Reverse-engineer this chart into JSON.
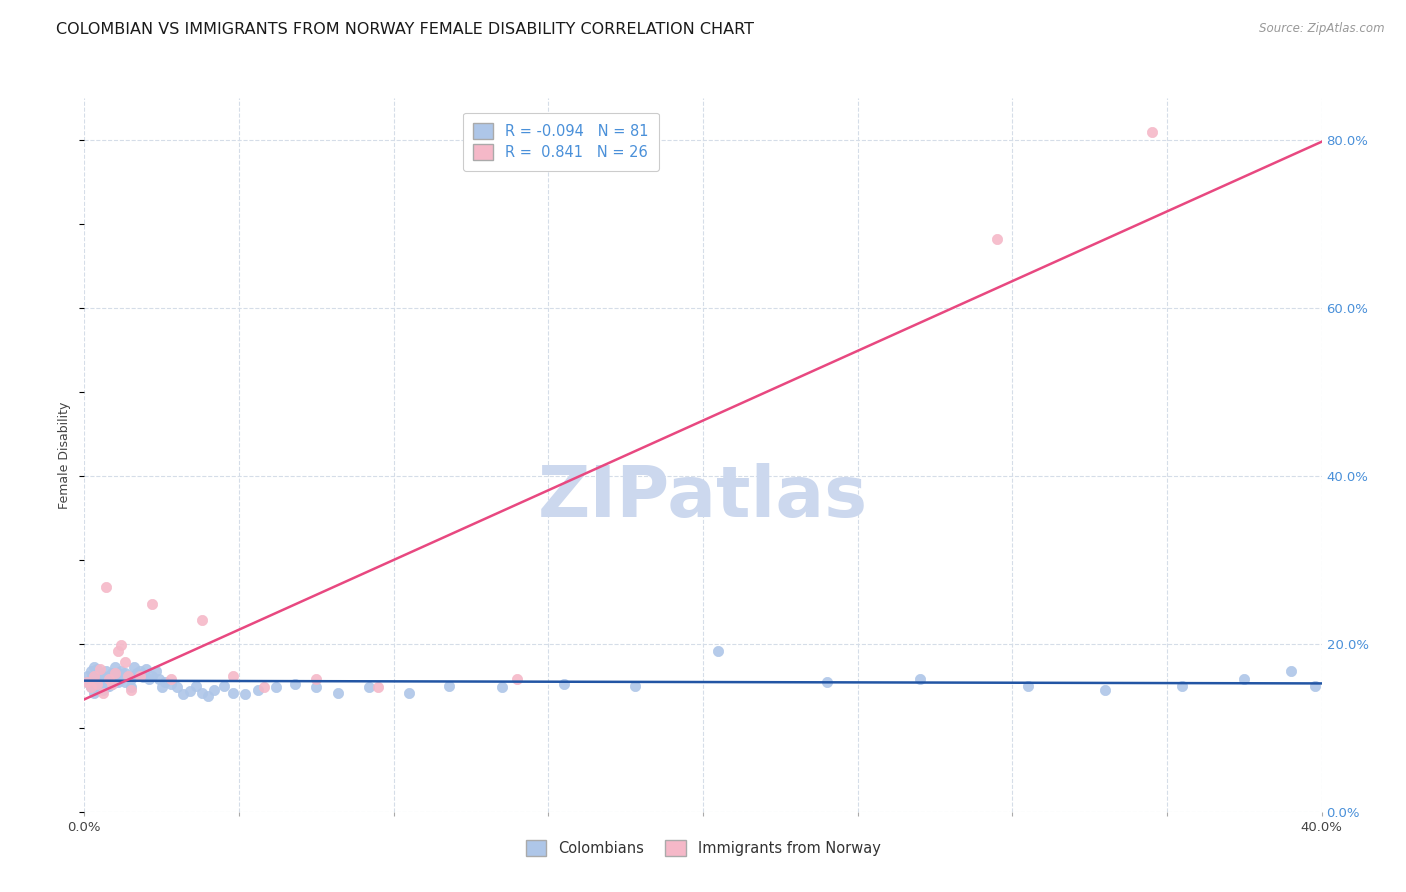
{
  "title": "COLOMBIAN VS IMMIGRANTS FROM NORWAY FEMALE DISABILITY CORRELATION CHART",
  "source": "Source: ZipAtlas.com",
  "ylabel": "Female Disability",
  "watermark": "ZIPatlas",
  "legend_label1": "Colombians",
  "legend_label2": "Immigrants from Norway",
  "R1": "-0.094",
  "N1": "81",
  "R2": "0.841",
  "N2": "26",
  "color_blue": "#aec6e8",
  "color_pink": "#f5b8c8",
  "line_blue": "#2255a4",
  "line_pink": "#e84880",
  "dot_blue_edge": "#aec6e8",
  "dot_pink_edge": "#f5b8c8",
  "colombians_x": [
    0.001,
    0.001,
    0.002,
    0.002,
    0.002,
    0.003,
    0.003,
    0.003,
    0.003,
    0.004,
    0.004,
    0.004,
    0.004,
    0.005,
    0.005,
    0.005,
    0.006,
    0.006,
    0.006,
    0.007,
    0.007,
    0.007,
    0.008,
    0.008,
    0.009,
    0.009,
    0.01,
    0.01,
    0.01,
    0.011,
    0.011,
    0.012,
    0.012,
    0.013,
    0.013,
    0.014,
    0.015,
    0.015,
    0.016,
    0.016,
    0.017,
    0.018,
    0.019,
    0.02,
    0.021,
    0.022,
    0.023,
    0.024,
    0.025,
    0.026,
    0.028,
    0.03,
    0.032,
    0.034,
    0.036,
    0.038,
    0.04,
    0.042,
    0.045,
    0.048,
    0.052,
    0.056,
    0.062,
    0.068,
    0.075,
    0.082,
    0.092,
    0.105,
    0.118,
    0.135,
    0.155,
    0.178,
    0.205,
    0.24,
    0.27,
    0.305,
    0.33,
    0.355,
    0.375,
    0.39,
    0.398
  ],
  "colombians_y": [
    0.155,
    0.162,
    0.148,
    0.158,
    0.168,
    0.142,
    0.152,
    0.162,
    0.172,
    0.145,
    0.155,
    0.165,
    0.17,
    0.148,
    0.158,
    0.165,
    0.145,
    0.155,
    0.162,
    0.148,
    0.158,
    0.168,
    0.15,
    0.162,
    0.152,
    0.165,
    0.155,
    0.165,
    0.172,
    0.155,
    0.165,
    0.158,
    0.168,
    0.155,
    0.165,
    0.162,
    0.158,
    0.148,
    0.162,
    0.172,
    0.165,
    0.168,
    0.16,
    0.17,
    0.158,
    0.162,
    0.168,
    0.158,
    0.148,
    0.155,
    0.152,
    0.148,
    0.14,
    0.144,
    0.15,
    0.142,
    0.138,
    0.145,
    0.15,
    0.142,
    0.14,
    0.145,
    0.148,
    0.152,
    0.148,
    0.142,
    0.148,
    0.142,
    0.15,
    0.148,
    0.152,
    0.15,
    0.192,
    0.155,
    0.158,
    0.15,
    0.145,
    0.15,
    0.158,
    0.168,
    0.15
  ],
  "norway_x": [
    0.001,
    0.002,
    0.003,
    0.004,
    0.005,
    0.006,
    0.007,
    0.008,
    0.009,
    0.01,
    0.011,
    0.012,
    0.013,
    0.014,
    0.015,
    0.018,
    0.022,
    0.028,
    0.038,
    0.048,
    0.058,
    0.075,
    0.095,
    0.14,
    0.295,
    0.345
  ],
  "norway_y": [
    0.155,
    0.148,
    0.162,
    0.152,
    0.17,
    0.142,
    0.268,
    0.158,
    0.152,
    0.165,
    0.192,
    0.198,
    0.178,
    0.162,
    0.145,
    0.162,
    0.248,
    0.158,
    0.228,
    0.162,
    0.148,
    0.158,
    0.148,
    0.158,
    0.682,
    0.81
  ],
  "xlim": [
    0.0,
    0.4
  ],
  "ylim": [
    0.0,
    0.85
  ],
  "xticks": [
    0.0,
    0.05,
    0.1,
    0.15,
    0.2,
    0.25,
    0.3,
    0.35,
    0.4
  ],
  "xtick_labels": [
    "0.0%",
    "",
    "",
    "",
    "",
    "",
    "",
    "",
    "40.0%"
  ],
  "yticks_right": [
    0.0,
    0.2,
    0.4,
    0.6,
    0.8
  ],
  "ytick_right_labels": [
    "0.0%",
    "20.0%",
    "40.0%",
    "60.0%",
    "80.0%"
  ],
  "grid_color": "#d5dde8",
  "bg_color": "#ffffff",
  "title_fontsize": 11.5,
  "axis_label_fontsize": 9,
  "tick_fontsize": 9.5,
  "watermark_color": "#ccd8ee",
  "watermark_fontsize": 52,
  "dot_size": 55
}
